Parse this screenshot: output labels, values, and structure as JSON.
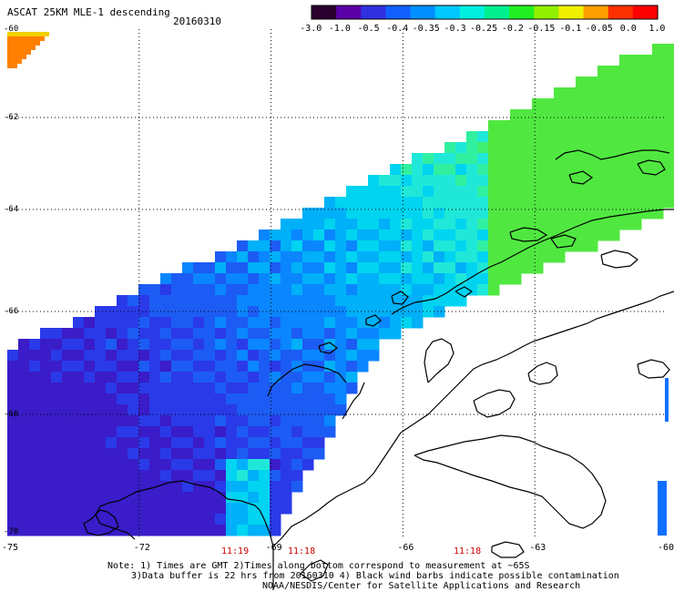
{
  "header": {
    "title": "ASCAT 25KM MLE-1 descending",
    "date": "20160310"
  },
  "colorbar": {
    "labels": [
      "-3.0",
      "-1.0",
      "-0.5",
      "-0.4",
      "-0.35",
      "-0.3",
      "-0.25",
      "-0.2",
      "-0.15",
      "-0.1",
      "-0.05",
      "0.0",
      "1.0"
    ],
    "colors": [
      "#2b0030",
      "#5a00a8",
      "#3030e0",
      "#1060ff",
      "#0090ff",
      "#00c8ff",
      "#00f0e0",
      "#00f090",
      "#20f020",
      "#90f000",
      "#f0f000",
      "#ffa000",
      "#ff3000",
      "#ff0000"
    ]
  },
  "axes": {
    "lat_labels": [
      "-60",
      "-62",
      "-64",
      "-66",
      "-68",
      "-70"
    ],
    "lon_labels": [
      "-75",
      "-72",
      "-69",
      "-66",
      "-63",
      "-60"
    ]
  },
  "times": [
    "11:19",
    "11:18",
    "11:18"
  ],
  "notes": {
    "line1": "Note: 1) Times are GMT 2)Times along bottom correspond to measurement at ~65S",
    "line2": "3)Data buffer is 22 hrs from 20160310 4) Black wind barbs indicate possible contamination",
    "line3": "NOAA/NESDIS/Center for Satellite Applications and Research"
  }
}
